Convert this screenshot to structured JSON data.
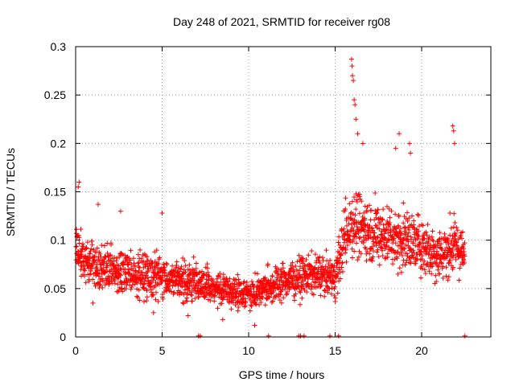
{
  "chart_data": {
    "type": "scatter",
    "title": "Day 248 of 2021, SRMTID for receiver rg08",
    "xlabel": "GPS time / hours",
    "ylabel": "SRMTID / TECUs",
    "xlim": [
      0,
      24
    ],
    "ylim": [
      0,
      0.3
    ],
    "xticks": [
      0,
      5,
      10,
      15,
      20
    ],
    "xtick_labels": [
      "0",
      "5",
      "10",
      "15",
      "20"
    ],
    "yticks": [
      0,
      0.05,
      0.1,
      0.15,
      0.2,
      0.25,
      0.3
    ],
    "ytick_labels": [
      "0",
      "0.05",
      "0.1",
      "0.15",
      "0.2",
      "0.25",
      "0.3"
    ],
    "grid": true,
    "marker": "+",
    "series": [
      {
        "name": "SRMTID",
        "color": "#ff0000",
        "points_description": "estimated envelope of dense point cloud (time in hours, median and spread in TECU)",
        "envelope": [
          {
            "x": 0.0,
            "median": 0.09,
            "spread": 0.035
          },
          {
            "x": 0.5,
            "median": 0.08,
            "spread": 0.03
          },
          {
            "x": 1.0,
            "median": 0.075,
            "spread": 0.03
          },
          {
            "x": 2.0,
            "median": 0.07,
            "spread": 0.03
          },
          {
            "x": 3.0,
            "median": 0.065,
            "spread": 0.03
          },
          {
            "x": 4.0,
            "median": 0.065,
            "spread": 0.028
          },
          {
            "x": 5.0,
            "median": 0.062,
            "spread": 0.028
          },
          {
            "x": 6.0,
            "median": 0.058,
            "spread": 0.025
          },
          {
            "x": 7.0,
            "median": 0.057,
            "spread": 0.025
          },
          {
            "x": 8.0,
            "median": 0.05,
            "spread": 0.022
          },
          {
            "x": 9.0,
            "median": 0.047,
            "spread": 0.02
          },
          {
            "x": 10.0,
            "median": 0.045,
            "spread": 0.02
          },
          {
            "x": 11.0,
            "median": 0.05,
            "spread": 0.022
          },
          {
            "x": 12.0,
            "median": 0.058,
            "spread": 0.025
          },
          {
            "x": 13.0,
            "median": 0.062,
            "spread": 0.025
          },
          {
            "x": 14.0,
            "median": 0.065,
            "spread": 0.025
          },
          {
            "x": 15.0,
            "median": 0.06,
            "spread": 0.025
          },
          {
            "x": 15.5,
            "median": 0.1,
            "spread": 0.04
          },
          {
            "x": 16.0,
            "median": 0.12,
            "spread": 0.045
          },
          {
            "x": 17.0,
            "median": 0.11,
            "spread": 0.04
          },
          {
            "x": 18.0,
            "median": 0.105,
            "spread": 0.04
          },
          {
            "x": 19.0,
            "median": 0.1,
            "spread": 0.04
          },
          {
            "x": 20.0,
            "median": 0.095,
            "spread": 0.038
          },
          {
            "x": 21.0,
            "median": 0.085,
            "spread": 0.035
          },
          {
            "x": 22.0,
            "median": 0.095,
            "spread": 0.035
          },
          {
            "x": 22.5,
            "median": 0.08,
            "spread": 0.03
          }
        ],
        "spikes": [
          {
            "x": 15.95,
            "y": 0.287
          },
          {
            "x": 15.98,
            "y": 0.28
          },
          {
            "x": 16.0,
            "y": 0.27
          },
          {
            "x": 16.05,
            "y": 0.265
          },
          {
            "x": 16.1,
            "y": 0.245
          },
          {
            "x": 16.15,
            "y": 0.24
          },
          {
            "x": 16.2,
            "y": 0.225
          },
          {
            "x": 16.3,
            "y": 0.21
          },
          {
            "x": 16.6,
            "y": 0.2
          },
          {
            "x": 18.7,
            "y": 0.21
          },
          {
            "x": 18.5,
            "y": 0.195
          },
          {
            "x": 19.3,
            "y": 0.2
          },
          {
            "x": 19.35,
            "y": 0.19
          },
          {
            "x": 21.8,
            "y": 0.218
          },
          {
            "x": 21.85,
            "y": 0.213
          },
          {
            "x": 21.9,
            "y": 0.2
          },
          {
            "x": 0.2,
            "y": 0.16
          },
          {
            "x": 0.15,
            "y": 0.155
          },
          {
            "x": 1.3,
            "y": 0.137
          },
          {
            "x": 2.6,
            "y": 0.13
          },
          {
            "x": 5.0,
            "y": 0.128
          },
          {
            "x": 10.35,
            "y": 0.012
          },
          {
            "x": 1.0,
            "y": 0.035
          },
          {
            "x": 4.5,
            "y": 0.025
          },
          {
            "x": 6.5,
            "y": 0.022
          },
          {
            "x": 8.5,
            "y": 0.018
          }
        ],
        "zeros": [
          7.1,
          7.2,
          11.15,
          12.9,
          13.0,
          13.2,
          14.7,
          15.2,
          22.5
        ]
      }
    ]
  }
}
